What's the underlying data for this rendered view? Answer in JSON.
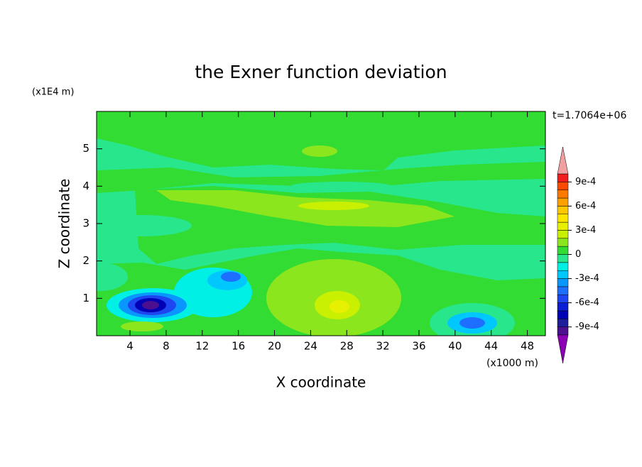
{
  "chart_data": {
    "type": "contour",
    "title": "the Exner function deviation",
    "xlabel": "X coordinate",
    "ylabel": "Z coordinate",
    "x_unit": "(x1000 m)",
    "y_unit": "(x1E4 m)",
    "time_label": "t=1.7064e+06",
    "xlim": [
      0.3,
      50
    ],
    "xticks": [
      4,
      8,
      12,
      16,
      20,
      24,
      28,
      32,
      36,
      40,
      44,
      48
    ],
    "ylim": [
      0,
      6
    ],
    "yticks": [
      1,
      2,
      3,
      4,
      5
    ],
    "clim": [
      -0.001,
      0.001
    ],
    "cticks": [
      {
        "value": -0.0009,
        "label": "-9e-4"
      },
      {
        "value": -0.0006,
        "label": "-6e-4"
      },
      {
        "value": -0.0003,
        "label": "-3e-4"
      },
      0,
      {
        "value": 0.0003,
        "label": "3e-4"
      },
      {
        "value": 0.0006,
        "label": "6e-4"
      },
      {
        "value": 0.0009,
        "label": "9e-4"
      }
    ],
    "colors": [
      "#8c00b4",
      "#4b0f8f",
      "#1e1e9c",
      "#0000b4",
      "#0a1ed2",
      "#1e46f0",
      "#1e6eff",
      "#0a96ff",
      "#00c8ff",
      "#00f0e6",
      "#28e68c",
      "#32dc32",
      "#8ce61e",
      "#c8f000",
      "#e6f000",
      "#ffe600",
      "#ffc800",
      "#ffa000",
      "#ff7800",
      "#ff4b00",
      "#f01e1e",
      "#f0a0a0"
    ]
  }
}
